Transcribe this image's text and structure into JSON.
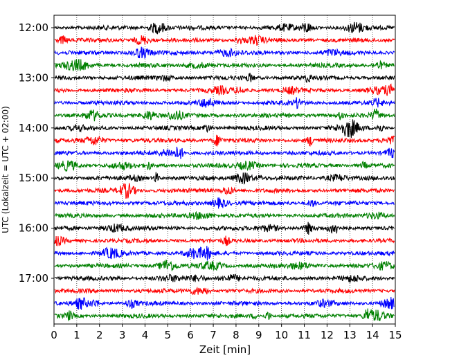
{
  "chart_data": {
    "type": "line",
    "xlabel": "Zeit  [min]",
    "ylabel": "UTC (Lokalzeit = UTC + 02:00)",
    "xlim": [
      0,
      15
    ],
    "x_ticks": [
      0,
      1,
      2,
      3,
      4,
      5,
      6,
      7,
      8,
      9,
      10,
      11,
      12,
      13,
      14,
      15
    ],
    "grid": "vertical-dotted",
    "trace_interval_minutes": 15,
    "colors_cycle": [
      "#000000",
      "#ff0000",
      "#0000ff",
      "#008000"
    ],
    "y_ticks": [
      {
        "label": "12:00",
        "row": 0
      },
      {
        "label": "13:00",
        "row": 4
      },
      {
        "label": "14:00",
        "row": 8
      },
      {
        "label": "15:00",
        "row": 12
      },
      {
        "label": "16:00",
        "row": 16
      },
      {
        "label": "17:00",
        "row": 20
      }
    ],
    "series": [
      {
        "start": "12:00",
        "color": "#000000"
      },
      {
        "start": "12:15",
        "color": "#ff0000"
      },
      {
        "start": "12:30",
        "color": "#0000ff"
      },
      {
        "start": "12:45",
        "color": "#008000"
      },
      {
        "start": "13:00",
        "color": "#000000"
      },
      {
        "start": "13:15",
        "color": "#ff0000"
      },
      {
        "start": "13:30",
        "color": "#0000ff"
      },
      {
        "start": "13:45",
        "color": "#008000"
      },
      {
        "start": "14:00",
        "color": "#000000"
      },
      {
        "start": "14:15",
        "color": "#ff0000"
      },
      {
        "start": "14:30",
        "color": "#0000ff"
      },
      {
        "start": "14:45",
        "color": "#008000"
      },
      {
        "start": "15:00",
        "color": "#000000"
      },
      {
        "start": "15:15",
        "color": "#ff0000"
      },
      {
        "start": "15:30",
        "color": "#0000ff"
      },
      {
        "start": "15:45",
        "color": "#008000"
      },
      {
        "start": "16:00",
        "color": "#000000"
      },
      {
        "start": "16:15",
        "color": "#ff0000"
      },
      {
        "start": "16:30",
        "color": "#0000ff"
      },
      {
        "start": "16:45",
        "color": "#008000"
      },
      {
        "start": "17:00",
        "color": "#000000"
      },
      {
        "start": "17:15",
        "color": "#ff0000"
      },
      {
        "start": "17:30",
        "color": "#0000ff"
      },
      {
        "start": "17:45",
        "color": "#008000"
      }
    ]
  }
}
